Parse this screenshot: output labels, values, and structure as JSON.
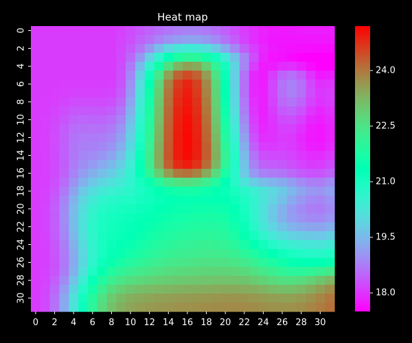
{
  "chart_data": {
    "type": "heatmap",
    "title": "Heat map",
    "xlabel": "",
    "ylabel": "",
    "colormap": "rainbow",
    "colorbar": {
      "vmin": 17.5,
      "vmax": 25.2,
      "ticks": [
        18.0,
        19.5,
        21.0,
        22.5,
        24.0
      ]
    },
    "x_ticks": [
      0,
      2,
      4,
      6,
      8,
      10,
      12,
      14,
      16,
      18,
      20,
      22,
      24,
      26,
      28,
      30
    ],
    "y_ticks": [
      0,
      2,
      4,
      6,
      8,
      10,
      12,
      14,
      16,
      18,
      20,
      22,
      24,
      26,
      28,
      30
    ],
    "rows": 32,
    "cols": 32,
    "values": [
      [
        18.07,
        18.07,
        18.07,
        18.07,
        18.07,
        18.07,
        18.07,
        18.07,
        18.07,
        18.13,
        18.23,
        18.36,
        18.47,
        18.58,
        18.68,
        18.76,
        18.8,
        18.79,
        18.72,
        18.6,
        18.44,
        18.26,
        18.09,
        17.94,
        17.83,
        17.76,
        17.74,
        17.75,
        17.77,
        17.79,
        17.79,
        17.79
      ],
      [
        18.07,
        18.07,
        18.07,
        18.07,
        18.07,
        18.07,
        18.07,
        18.07,
        18.07,
        18.15,
        18.28,
        18.46,
        18.63,
        18.81,
        18.98,
        19.11,
        19.19,
        19.18,
        19.08,
        18.89,
        18.65,
        18.39,
        18.14,
        17.94,
        17.8,
        17.72,
        17.7,
        17.7,
        17.71,
        17.72,
        17.72,
        17.72
      ],
      [
        18.07,
        18.07,
        18.07,
        18.07,
        18.07,
        18.07,
        18.07,
        18.07,
        18.07,
        18.18,
        18.38,
        18.67,
        19.07,
        19.54,
        19.95,
        20.26,
        20.4,
        20.35,
        20.12,
        19.75,
        19.32,
        18.86,
        18.43,
        18.1,
        17.88,
        17.75,
        17.69,
        17.66,
        17.64,
        17.63,
        17.62,
        17.62
      ],
      [
        18.07,
        18.07,
        18.07,
        18.07,
        18.07,
        18.07,
        18.07,
        18.07,
        18.07,
        18.21,
        18.53,
        19.07,
        19.8,
        20.58,
        21.28,
        21.79,
        22.03,
        21.97,
        21.63,
        21.07,
        20.37,
        19.6,
        18.85,
        18.24,
        17.85,
        17.68,
        17.66,
        17.6,
        17.53,
        17.5,
        17.5,
        17.5
      ],
      [
        18.07,
        18.07,
        18.07,
        18.07,
        18.07,
        18.07,
        18.07,
        18.07,
        18.07,
        18.25,
        18.72,
        19.52,
        20.55,
        21.64,
        22.59,
        23.25,
        23.53,
        23.41,
        22.91,
        22.1,
        21.05,
        19.91,
        18.85,
        18.09,
        17.76,
        17.78,
        17.92,
        17.95,
        17.82,
        17.62,
        17.47,
        17.5
      ],
      [
        18.07,
        18.07,
        18.07,
        18.07,
        18.07,
        18.07,
        18.07,
        18.07,
        18.07,
        18.28,
        18.87,
        19.86,
        21.12,
        22.41,
        23.51,
        24.22,
        24.47,
        24.24,
        23.57,
        22.52,
        21.21,
        19.83,
        18.64,
        17.9,
        17.77,
        18.09,
        18.48,
        18.59,
        18.38,
        17.99,
        17.74,
        17.79
      ],
      [
        18.07,
        18.07,
        18.07,
        18.08,
        18.09,
        18.09,
        18.09,
        18.09,
        18.1,
        18.31,
        18.97,
        20.05,
        21.41,
        22.78,
        23.92,
        24.62,
        24.84,
        24.56,
        23.82,
        22.7,
        21.32,
        19.88,
        18.61,
        17.89,
        17.79,
        18.18,
        18.64,
        18.8,
        18.6,
        18.2,
        17.95,
        18.0
      ],
      [
        18.07,
        18.07,
        18.08,
        18.11,
        18.14,
        18.14,
        18.14,
        18.14,
        18.17,
        18.39,
        19.08,
        20.19,
        21.55,
        22.91,
        24.03,
        24.71,
        24.92,
        24.64,
        23.9,
        22.77,
        21.37,
        19.91,
        18.63,
        17.9,
        17.8,
        18.18,
        18.63,
        18.79,
        18.61,
        18.24,
        18.03,
        18.09
      ],
      [
        18.07,
        18.08,
        18.11,
        18.17,
        18.23,
        18.24,
        18.24,
        18.23,
        18.27,
        18.52,
        19.22,
        20.33,
        21.67,
        23.01,
        24.11,
        24.78,
        24.98,
        24.71,
        23.97,
        22.84,
        21.44,
        19.98,
        18.69,
        17.94,
        17.82,
        18.14,
        18.53,
        18.65,
        18.48,
        18.15,
        17.98,
        18.07
      ],
      [
        18.07,
        18.09,
        18.15,
        18.25,
        18.35,
        18.37,
        18.37,
        18.36,
        18.42,
        18.68,
        19.38,
        20.46,
        21.77,
        23.08,
        24.16,
        24.83,
        25.03,
        24.76,
        24.03,
        22.92,
        21.54,
        20.08,
        18.78,
        17.99,
        17.82,
        18.07,
        18.37,
        18.46,
        18.29,
        18.01,
        17.87,
        17.98
      ],
      [
        18.07,
        18.1,
        18.19,
        18.33,
        18.47,
        18.51,
        18.5,
        18.5,
        18.58,
        18.86,
        19.55,
        20.6,
        21.88,
        23.16,
        24.22,
        24.88,
        25.08,
        24.81,
        24.1,
        23.01,
        21.65,
        20.21,
        18.9,
        18.08,
        17.84,
        18.01,
        18.22,
        18.27,
        18.1,
        17.87,
        17.78,
        17.9
      ],
      [
        18.07,
        18.1,
        18.21,
        18.39,
        18.57,
        18.63,
        18.62,
        18.63,
        18.72,
        19.02,
        19.7,
        20.73,
        21.97,
        23.22,
        24.26,
        24.91,
        25.1,
        24.85,
        24.16,
        23.1,
        21.76,
        20.34,
        19.03,
        18.17,
        17.88,
        17.98,
        18.12,
        18.13,
        17.97,
        17.77,
        17.71,
        17.84
      ],
      [
        18.07,
        18.11,
        18.23,
        18.43,
        18.64,
        18.71,
        18.72,
        18.74,
        18.86,
        19.17,
        19.84,
        20.86,
        22.07,
        23.29,
        24.3,
        24.93,
        25.12,
        24.88,
        24.22,
        23.19,
        21.88,
        20.48,
        19.17,
        18.29,
        17.95,
        17.98,
        18.07,
        18.05,
        17.9,
        17.73,
        17.7,
        17.84
      ],
      [
        18.07,
        18.11,
        18.23,
        18.44,
        18.67,
        18.77,
        18.8,
        18.86,
        19.02,
        19.34,
        20.0,
        21.0,
        22.18,
        23.37,
        24.34,
        24.94,
        25.12,
        24.9,
        24.27,
        23.28,
        22.02,
        20.66,
        19.35,
        18.45,
        18.08,
        18.06,
        18.1,
        18.06,
        17.93,
        17.79,
        17.77,
        17.91
      ],
      [
        18.07,
        18.1,
        18.22,
        18.44,
        18.69,
        18.84,
        18.92,
        19.04,
        19.23,
        19.56,
        20.2,
        21.16,
        22.29,
        23.43,
        24.36,
        24.94,
        25.1,
        24.89,
        24.29,
        23.34,
        22.13,
        20.81,
        19.53,
        18.65,
        18.28,
        18.22,
        18.21,
        18.14,
        18.03,
        17.93,
        17.93,
        18.06
      ],
      [
        18.07,
        18.1,
        18.21,
        18.43,
        18.72,
        18.94,
        19.09,
        19.27,
        19.48,
        19.81,
        20.39,
        21.27,
        22.32,
        23.38,
        24.26,
        24.79,
        24.93,
        24.71,
        24.13,
        23.22,
        22.08,
        20.84,
        19.64,
        18.81,
        18.47,
        18.4,
        18.36,
        18.27,
        18.15,
        18.07,
        18.08,
        18.22
      ],
      [
        18.07,
        18.1,
        18.22,
        18.47,
        18.81,
        19.11,
        19.34,
        19.56,
        19.79,
        20.09,
        20.56,
        21.26,
        22.08,
        22.91,
        23.58,
        23.99,
        24.08,
        23.89,
        23.41,
        22.67,
        21.75,
        20.74,
        19.77,
        19.09,
        18.81,
        18.73,
        18.66,
        18.54,
        18.4,
        18.31,
        18.32,
        18.47
      ],
      [
        18.07,
        18.11,
        18.26,
        18.56,
        18.98,
        19.38,
        19.69,
        19.94,
        20.14,
        20.34,
        20.62,
        21.02,
        21.49,
        21.96,
        22.34,
        22.56,
        22.62,
        22.51,
        22.26,
        21.86,
        21.35,
        20.79,
        20.24,
        19.81,
        19.56,
        19.42,
        19.29,
        19.11,
        18.91,
        18.78,
        18.77,
        18.93
      ],
      [
        18.07,
        18.13,
        18.32,
        18.7,
        19.2,
        19.7,
        20.07,
        20.32,
        20.47,
        20.58,
        20.73,
        20.92,
        21.14,
        21.36,
        21.54,
        21.64,
        21.67,
        21.64,
        21.55,
        21.42,
        21.24,
        21.01,
        20.75,
        20.47,
        20.2,
        19.95,
        19.71,
        19.46,
        19.22,
        19.05,
        19.02,
        19.18
      ],
      [
        18.07,
        18.14,
        18.38,
        18.82,
        19.39,
        19.94,
        20.36,
        20.62,
        20.75,
        20.83,
        20.9,
        21.0,
        21.11,
        21.23,
        21.33,
        21.39,
        21.42,
        21.42,
        21.41,
        21.38,
        21.31,
        21.16,
        20.92,
        20.61,
        20.24,
        19.89,
        19.57,
        19.28,
        19.05,
        18.88,
        18.85,
        19.0
      ],
      [
        18.07,
        18.15,
        18.41,
        18.89,
        19.5,
        20.09,
        20.55,
        20.81,
        20.94,
        21.01,
        21.07,
        21.15,
        21.24,
        21.34,
        21.42,
        21.48,
        21.52,
        21.55,
        21.57,
        21.57,
        21.5,
        21.32,
        21.01,
        20.61,
        20.15,
        19.73,
        19.38,
        19.1,
        18.9,
        18.77,
        18.75,
        18.9
      ],
      [
        18.07,
        18.15,
        18.42,
        18.91,
        19.55,
        20.17,
        20.64,
        20.91,
        21.04,
        21.11,
        21.18,
        21.27,
        21.36,
        21.46,
        21.55,
        21.61,
        21.66,
        21.7,
        21.73,
        21.73,
        21.65,
        21.44,
        21.1,
        20.65,
        20.16,
        19.73,
        19.38,
        19.14,
        18.98,
        18.89,
        18.88,
        19.03
      ],
      [
        18.07,
        18.15,
        18.41,
        18.89,
        19.53,
        20.18,
        20.68,
        20.96,
        21.1,
        21.18,
        21.26,
        21.36,
        21.47,
        21.58,
        21.68,
        21.75,
        21.8,
        21.84,
        21.87,
        21.87,
        21.79,
        21.58,
        21.22,
        20.78,
        20.32,
        19.92,
        19.62,
        19.42,
        19.3,
        19.23,
        19.22,
        19.36
      ],
      [
        18.07,
        18.14,
        18.39,
        18.84,
        19.47,
        20.14,
        20.66,
        20.98,
        21.14,
        21.24,
        21.34,
        21.47,
        21.6,
        21.72,
        21.83,
        21.91,
        21.96,
        22.0,
        22.02,
        22.01,
        21.94,
        21.75,
        21.43,
        21.04,
        20.64,
        20.3,
        20.05,
        19.89,
        19.79,
        19.72,
        19.7,
        19.84
      ],
      [
        18.07,
        18.13,
        18.35,
        18.77,
        19.38,
        20.05,
        20.61,
        20.97,
        21.18,
        21.31,
        21.44,
        21.6,
        21.75,
        21.88,
        21.99,
        22.07,
        22.12,
        22.16,
        22.18,
        22.17,
        22.11,
        21.96,
        21.71,
        21.4,
        21.08,
        20.81,
        20.6,
        20.45,
        20.34,
        20.26,
        20.23,
        20.35
      ],
      [
        18.07,
        18.12,
        18.32,
        18.71,
        19.3,
        19.98,
        20.58,
        21.0,
        21.26,
        21.44,
        21.6,
        21.77,
        21.92,
        22.05,
        22.15,
        22.22,
        22.27,
        22.3,
        22.33,
        22.33,
        22.29,
        22.19,
        22.02,
        21.8,
        21.56,
        21.33,
        21.13,
        20.97,
        20.85,
        20.77,
        20.74,
        20.85
      ],
      [
        18.07,
        18.12,
        18.3,
        18.69,
        19.29,
        20.0,
        20.66,
        21.15,
        21.49,
        21.71,
        21.88,
        22.03,
        22.17,
        22.28,
        22.37,
        22.43,
        22.47,
        22.51,
        22.53,
        22.54,
        22.53,
        22.47,
        22.36,
        22.2,
        21.99,
        21.78,
        21.59,
        21.45,
        21.36,
        21.34,
        21.36,
        21.49
      ],
      [
        18.07,
        18.13,
        18.33,
        18.75,
        19.39,
        20.16,
        20.9,
        21.46,
        21.84,
        22.08,
        22.24,
        22.36,
        22.47,
        22.56,
        22.63,
        22.68,
        22.72,
        22.75,
        22.77,
        22.79,
        22.8,
        22.78,
        22.71,
        22.58,
        22.41,
        22.22,
        22.06,
        21.98,
        21.99,
        22.08,
        22.21,
        22.41
      ],
      [
        18.07,
        18.15,
        18.41,
        18.9,
        19.62,
        20.46,
        21.25,
        21.84,
        22.23,
        22.47,
        22.62,
        22.72,
        22.8,
        22.87,
        22.92,
        22.96,
        22.99,
        23.02,
        23.04,
        23.06,
        23.07,
        23.07,
        23.03,
        22.95,
        22.83,
        22.69,
        22.59,
        22.58,
        22.67,
        22.84,
        23.03,
        23.24
      ],
      [
        18.07,
        18.18,
        18.52,
        19.1,
        19.91,
        20.8,
        21.63,
        22.24,
        22.64,
        22.88,
        23.03,
        23.12,
        23.18,
        23.23,
        23.27,
        23.3,
        23.33,
        23.35,
        23.37,
        23.39,
        23.41,
        23.41,
        23.39,
        23.34,
        23.27,
        23.18,
        23.12,
        23.13,
        23.22,
        23.38,
        23.56,
        23.75
      ],
      [
        18.07,
        18.2,
        18.6,
        19.25,
        20.12,
        21.06,
        21.91,
        22.54,
        22.95,
        23.19,
        23.34,
        23.42,
        23.48,
        23.52,
        23.55,
        23.58,
        23.6,
        23.62,
        23.64,
        23.66,
        23.67,
        23.68,
        23.67,
        23.64,
        23.6,
        23.55,
        23.52,
        23.53,
        23.6,
        23.71,
        23.85,
        24.0
      ],
      [
        18.07,
        18.21,
        18.62,
        19.3,
        20.2,
        21.16,
        22.03,
        22.67,
        23.08,
        23.33,
        23.47,
        23.55,
        23.61,
        23.65,
        23.68,
        23.7,
        23.72,
        23.74,
        23.76,
        23.77,
        23.79,
        23.8,
        23.79,
        23.77,
        23.74,
        23.71,
        23.69,
        23.7,
        23.75,
        23.84,
        23.95,
        24.08
      ]
    ]
  }
}
